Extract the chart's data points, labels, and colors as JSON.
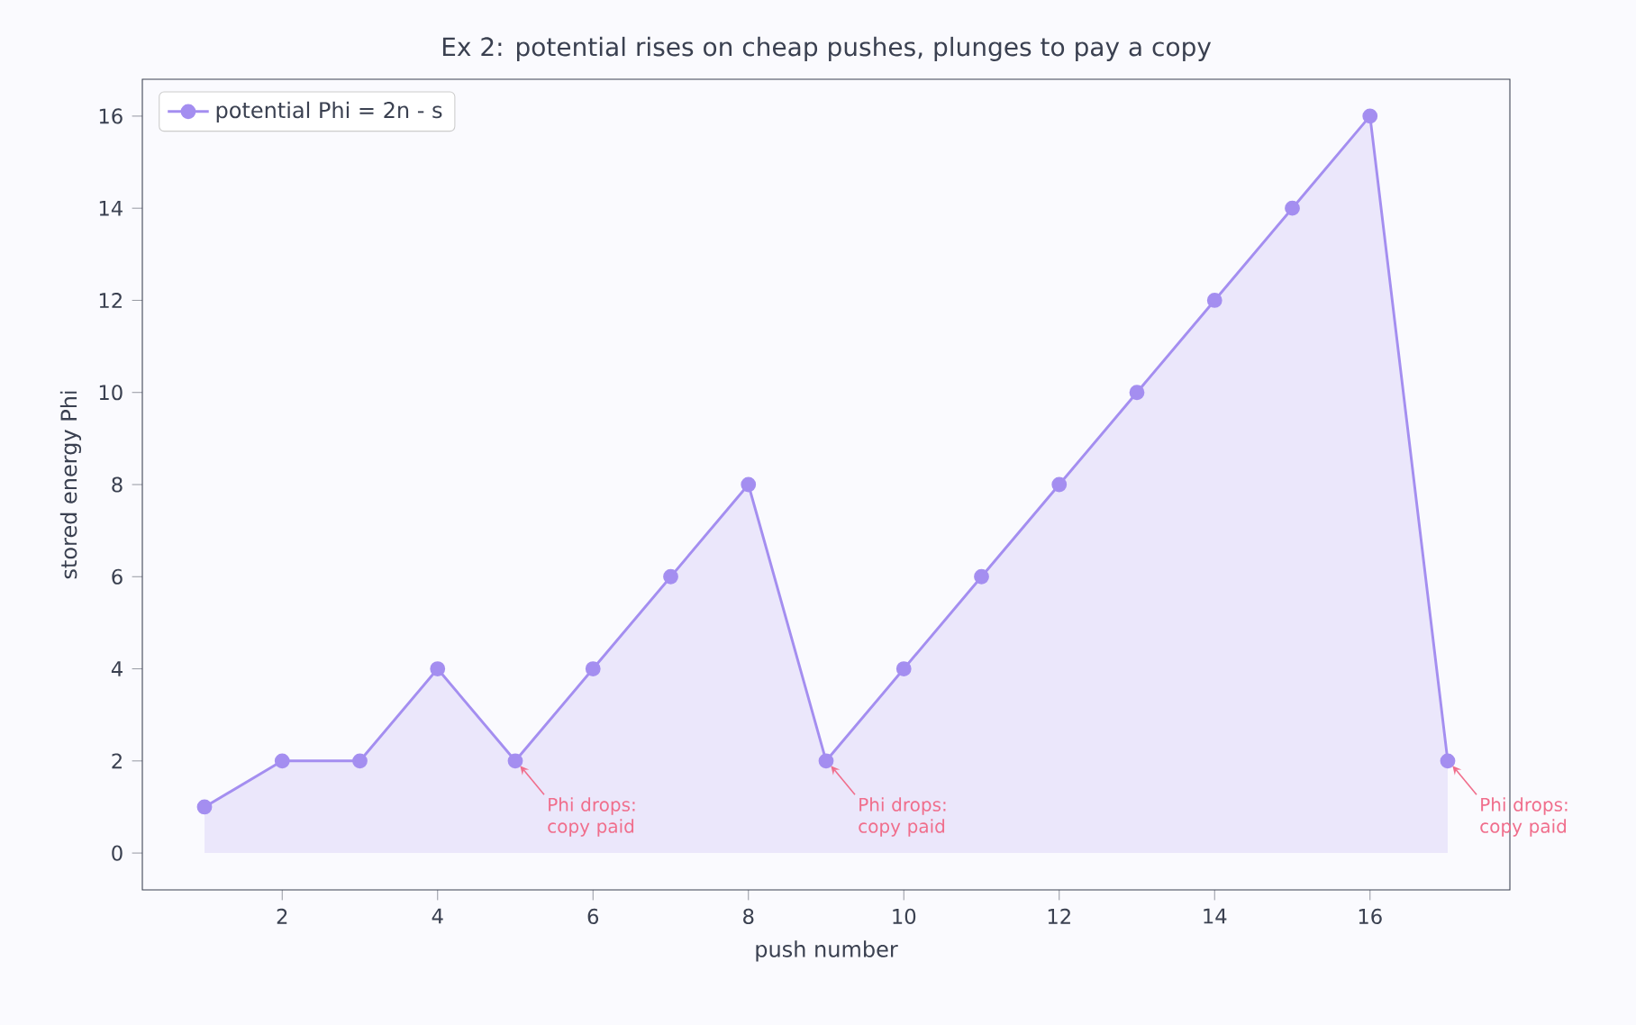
{
  "chart_data": {
    "type": "area",
    "title": "Ex 2: potential rises on cheap pushes, plunges to pay a copy",
    "xlabel": "push number",
    "ylabel": "stored energy Phi",
    "x": [
      1,
      2,
      3,
      4,
      5,
      6,
      7,
      8,
      9,
      10,
      11,
      12,
      13,
      14,
      15,
      16,
      17
    ],
    "series": [
      {
        "name": "potential Phi = 2n - s",
        "color": "#a48ef0",
        "values": [
          1,
          2,
          2,
          4,
          2,
          4,
          6,
          8,
          2,
          4,
          6,
          8,
          10,
          12,
          14,
          16,
          2
        ]
      }
    ],
    "xlim": [
      0.2,
      17.8
    ],
    "ylim": [
      -0.8,
      16.8
    ],
    "xticks": [
      2,
      4,
      6,
      8,
      10,
      12,
      14,
      16
    ],
    "yticks": [
      0,
      2,
      4,
      6,
      8,
      10,
      12,
      14,
      16
    ],
    "marker": "circle",
    "line_style": "solid",
    "legend": "top left",
    "grid": false,
    "annotations": [
      {
        "text": "Phi drops: copy paid",
        "x": 5,
        "y": 2
      },
      {
        "text": "Phi drops: copy paid",
        "x": 9,
        "y": 2
      },
      {
        "text": "Phi drops: copy paid",
        "x": 17,
        "y": 2
      }
    ]
  }
}
